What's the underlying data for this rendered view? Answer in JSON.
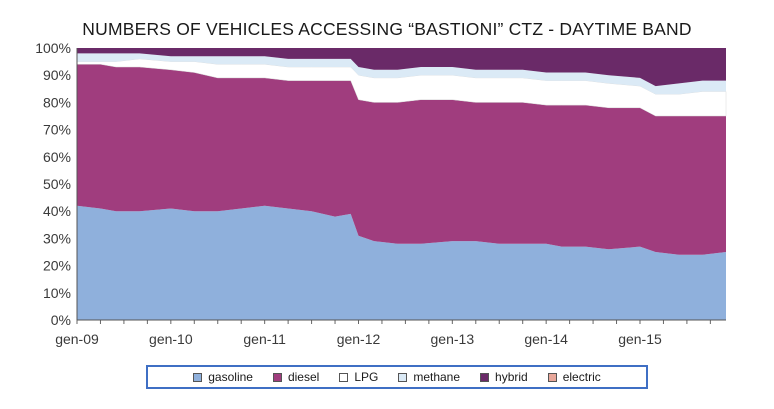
{
  "chart_data": {
    "type": "area",
    "stacked": true,
    "title": "NUMBERS OF VEHICLES ACCESSING “BASTIONI” CTZ - DAYTIME BAND",
    "xlabel": "",
    "ylabel": "",
    "ylim": [
      0,
      100
    ],
    "y_ticks": [
      "0%",
      "10%",
      "20%",
      "30%",
      "40%",
      "50%",
      "60%",
      "70%",
      "80%",
      "90%",
      "100%"
    ],
    "x_ticks": [
      "gen-09",
      "gen-10",
      "gen-11",
      "gen-12",
      "gen-13",
      "gen-14",
      "gen-15"
    ],
    "x": [
      "2009-01",
      "2009-04",
      "2009-06",
      "2009-09",
      "2010-01",
      "2010-04",
      "2010-07",
      "2010-10",
      "2011-01",
      "2011-04",
      "2011-07",
      "2011-10",
      "2011-12",
      "2012-01",
      "2012-03",
      "2012-06",
      "2012-09",
      "2013-01",
      "2013-04",
      "2013-07",
      "2013-10",
      "2014-01",
      "2014-03",
      "2014-06",
      "2014-09",
      "2015-01",
      "2015-03",
      "2015-06",
      "2015-09",
      "2015-12"
    ],
    "legend_position": "bottom",
    "series": [
      {
        "name": "gasoline",
        "color": "#8fb0dc",
        "values": [
          42,
          41,
          40,
          40,
          41,
          40,
          40,
          41,
          42,
          41,
          40,
          38,
          39,
          31,
          29,
          28,
          28,
          29,
          29,
          28,
          28,
          28,
          27,
          27,
          26,
          27,
          25,
          24,
          24,
          25
        ]
      },
      {
        "name": "diesel",
        "color": "#a03d7e",
        "values": [
          52,
          53,
          53,
          53,
          51,
          51,
          49,
          48,
          47,
          47,
          48,
          50,
          49,
          50,
          51,
          52,
          53,
          52,
          51,
          52,
          52,
          51,
          52,
          52,
          52,
          51,
          50,
          51,
          51,
          50
        ]
      },
      {
        "name": "LPG",
        "color": "#ffffff",
        "values": [
          1,
          1,
          2,
          3,
          3,
          4,
          5,
          5,
          5,
          5,
          5,
          5,
          5,
          9,
          9,
          9,
          9,
          9,
          9,
          9,
          9,
          9,
          9,
          9,
          9,
          8,
          8,
          8,
          9,
          9
        ]
      },
      {
        "name": "methane",
        "color": "#dbeaf6",
        "values": [
          3,
          3,
          3,
          2,
          2,
          2,
          3,
          3,
          3,
          3,
          3,
          3,
          3,
          3,
          3,
          3,
          3,
          3,
          3,
          3,
          3,
          3,
          3,
          3,
          3,
          3,
          3,
          4,
          4,
          4
        ]
      },
      {
        "name": "hybrid",
        "color": "#6a2a68",
        "values": [
          2,
          2,
          2,
          2,
          3,
          3,
          3,
          3,
          3,
          4,
          4,
          4,
          4,
          7,
          8,
          8,
          7,
          7,
          8,
          8,
          8,
          9,
          9,
          9,
          10,
          11,
          14,
          13,
          12,
          12
        ]
      },
      {
        "name": "electric",
        "color": "#e8a79a",
        "values": [
          0,
          0,
          0,
          0,
          0,
          0,
          0,
          0,
          0,
          0,
          0,
          0,
          0,
          0,
          0,
          0,
          0,
          0,
          0,
          0,
          0,
          0,
          0,
          0,
          0,
          0,
          0,
          0,
          0,
          0
        ]
      }
    ]
  }
}
